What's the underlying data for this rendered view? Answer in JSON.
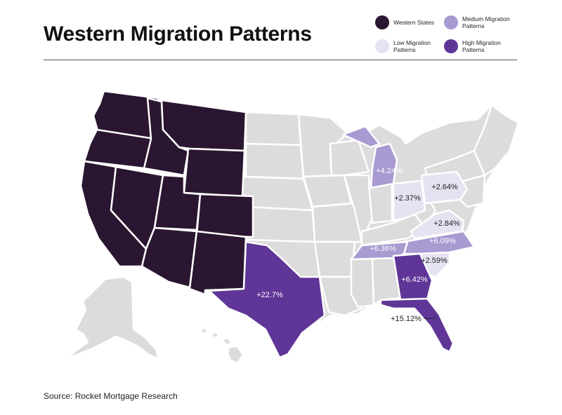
{
  "title": "Western Migration Patterns",
  "legend": [
    {
      "label": "Western States",
      "color": "#2a1630"
    },
    {
      "label": "Medium Migration Patterns",
      "color": "#a99ad2"
    },
    {
      "label": "Low Migration Patterns",
      "color": "#e6e2f1"
    },
    {
      "label": "High Migration Patterns",
      "color": "#5f3597"
    }
  ],
  "colors": {
    "base": "#dcdcdc",
    "western": "#2a1630",
    "high": "#5f3597",
    "medium": "#a99ad2",
    "low": "#e6e2f1"
  },
  "labels": {
    "texas": "+22.7%",
    "florida": "+15.12%",
    "georgia": "+6.42%",
    "tennessee": "+6.36%",
    "north_carolina": "+6.09%",
    "south_carolina": "+2.59%",
    "virginia": "+2.84%",
    "pennsylvania": "+2.64%",
    "ohio": "+2.37%",
    "michigan": "+4.24%"
  },
  "source": "Source: Rocket Mortgage Research"
}
